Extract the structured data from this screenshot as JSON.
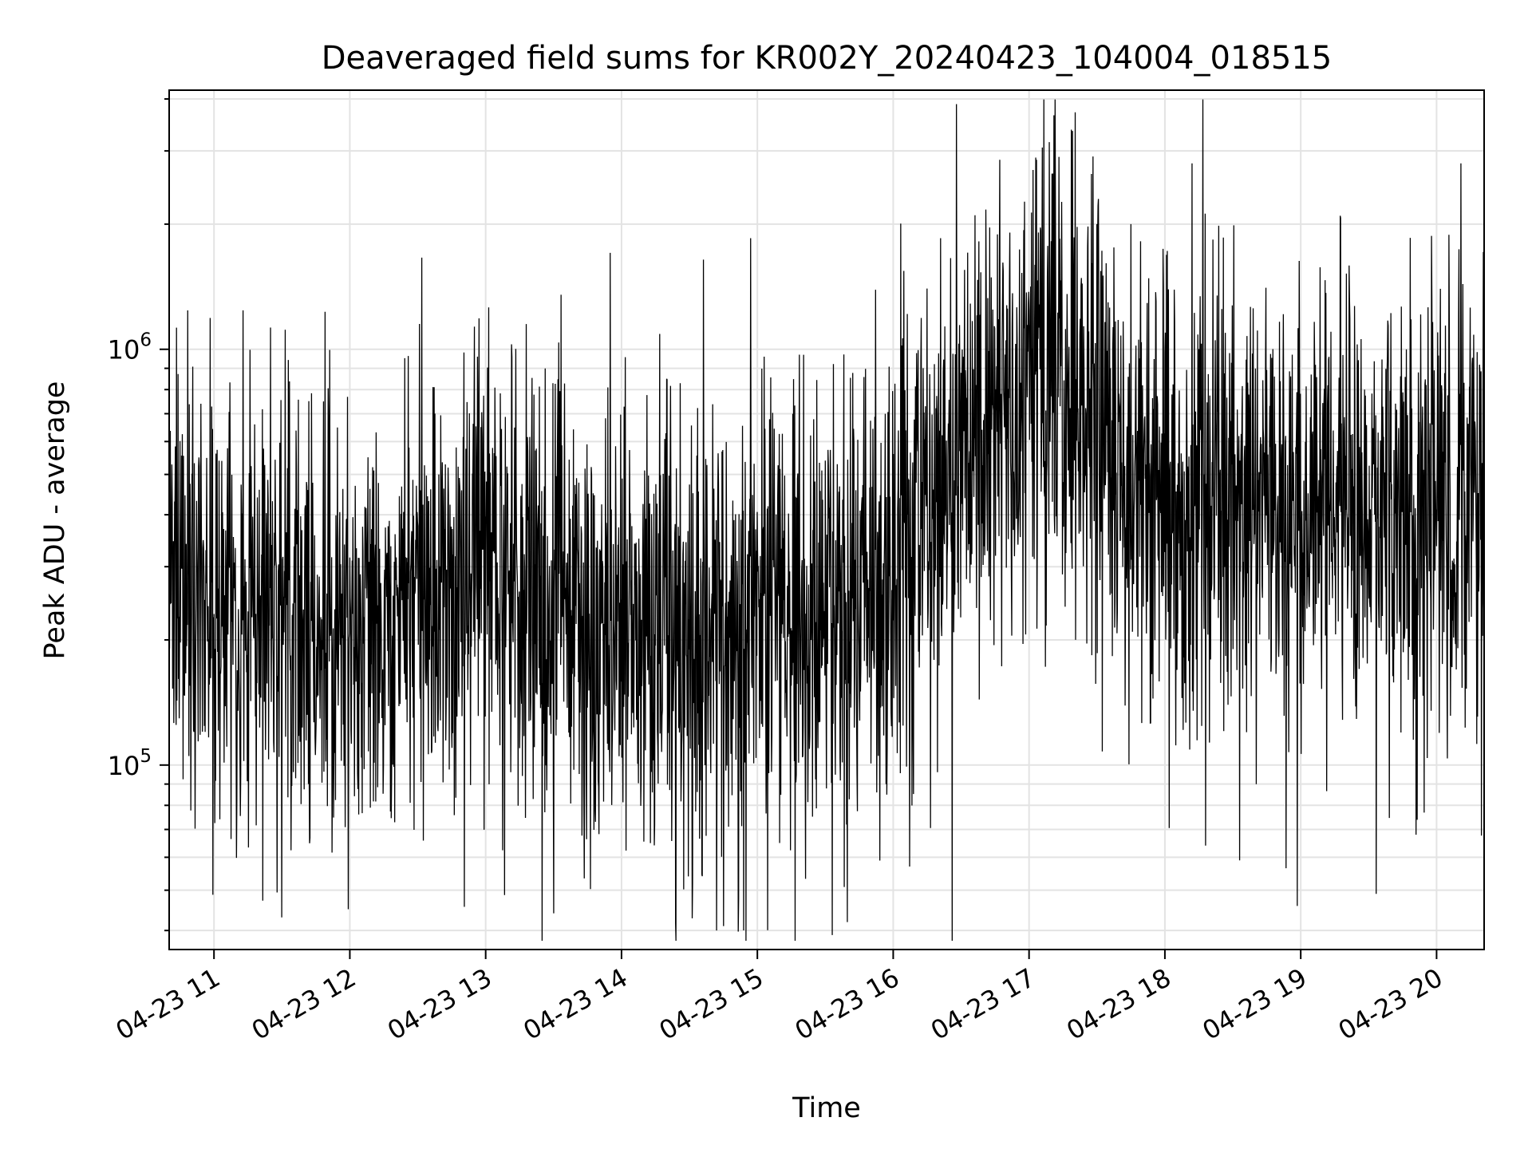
{
  "chart_data": {
    "type": "line",
    "title": "Deaveraged field sums for KR002Y_20240423_104004_018515",
    "xlabel": "Time",
    "ylabel": "Peak ADU - average",
    "yscale": "log",
    "ylim": [
      36000,
      4200000
    ],
    "xlim_hours": [
      10.67,
      20.35
    ],
    "grid": true,
    "line_color": "#000000",
    "x_ticks": [
      {
        "hour": 11,
        "label": "04-23 11"
      },
      {
        "hour": 12,
        "label": "04-23 12"
      },
      {
        "hour": 13,
        "label": "04-23 13"
      },
      {
        "hour": 14,
        "label": "04-23 14"
      },
      {
        "hour": 15,
        "label": "04-23 15"
      },
      {
        "hour": 16,
        "label": "04-23 16"
      },
      {
        "hour": 17,
        "label": "04-23 17"
      },
      {
        "hour": 18,
        "label": "04-23 18"
      },
      {
        "hour": 19,
        "label": "04-23 19"
      },
      {
        "hour": 20,
        "label": "04-23 20"
      }
    ],
    "y_ticks": [
      {
        "value": 100000,
        "base": "10",
        "exp": "5"
      },
      {
        "value": 1000000,
        "base": "10",
        "exp": "6"
      }
    ],
    "envelope": [
      {
        "hour": 10.67,
        "median": 260000,
        "spread": 0.3
      },
      {
        "hour": 11.0,
        "median": 240000,
        "spread": 0.27
      },
      {
        "hour": 11.5,
        "median": 220000,
        "spread": 0.27
      },
      {
        "hour": 12.0,
        "median": 200000,
        "spread": 0.26
      },
      {
        "hour": 12.5,
        "median": 250000,
        "spread": 0.27
      },
      {
        "hour": 13.0,
        "median": 290000,
        "spread": 0.29
      },
      {
        "hour": 13.5,
        "median": 250000,
        "spread": 0.28
      },
      {
        "hour": 14.0,
        "median": 220000,
        "spread": 0.28
      },
      {
        "hour": 14.5,
        "median": 190000,
        "spread": 0.3
      },
      {
        "hour": 15.0,
        "median": 230000,
        "spread": 0.29
      },
      {
        "hour": 15.5,
        "median": 210000,
        "spread": 0.27
      },
      {
        "hour": 16.0,
        "median": 300000,
        "spread": 0.28
      },
      {
        "hour": 16.5,
        "median": 500000,
        "spread": 0.29
      },
      {
        "hour": 17.0,
        "median": 750000,
        "spread": 0.29
      },
      {
        "hour": 17.3,
        "median": 800000,
        "spread": 0.29
      },
      {
        "hour": 17.5,
        "median": 600000,
        "spread": 0.29
      },
      {
        "hour": 18.0,
        "median": 470000,
        "spread": 0.29
      },
      {
        "hour": 18.5,
        "median": 420000,
        "spread": 0.28
      },
      {
        "hour": 19.0,
        "median": 400000,
        "spread": 0.28
      },
      {
        "hour": 19.5,
        "median": 400000,
        "spread": 0.28
      },
      {
        "hour": 20.0,
        "median": 420000,
        "spread": 0.28
      },
      {
        "hour": 20.35,
        "median": 480000,
        "spread": 0.28
      }
    ],
    "notable_points": [
      {
        "hour": 14.95,
        "value": 1850000
      },
      {
        "hour": 16.25,
        "value": 1400000
      },
      {
        "hour": 16.35,
        "value": 1850000
      },
      {
        "hour": 17.03,
        "value": 2700000
      },
      {
        "hour": 17.15,
        "value": 3150000
      },
      {
        "hour": 17.32,
        "value": 3350000
      },
      {
        "hour": 17.5,
        "value": 2000000
      },
      {
        "hour": 17.75,
        "value": 2000000
      },
      {
        "hour": 18.2,
        "value": 2800000
      },
      {
        "hour": 20.18,
        "value": 2800000
      },
      {
        "hour": 13.3,
        "value": 1150000
      },
      {
        "hour": 15.05,
        "value": 960000
      },
      {
        "hour": 11.5,
        "value": 43000
      },
      {
        "hour": 13.5,
        "value": 44000
      },
      {
        "hour": 14.7,
        "value": 40000
      },
      {
        "hour": 14.75,
        "value": 41000
      },
      {
        "hour": 15.55,
        "value": 39000
      },
      {
        "hour": 16.12,
        "value": 57000
      },
      {
        "hour": 18.55,
        "value": 59000
      },
      {
        "hour": 18.3,
        "value": 64000
      },
      {
        "hour": 19.85,
        "value": 68000
      }
    ]
  }
}
